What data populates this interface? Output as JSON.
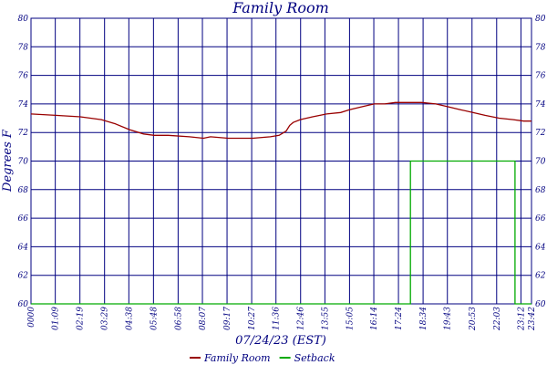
{
  "chart_data": {
    "type": "line",
    "title": "Family Room",
    "xlabel": "07/24/23 (EST)",
    "ylabel": "Degrees F",
    "ylim": [
      60,
      80
    ],
    "yticks": [
      60,
      62,
      64,
      66,
      68,
      70,
      72,
      74,
      76,
      78,
      80
    ],
    "xlim": [
      "00:00",
      "23:42"
    ],
    "xticks": [
      "0000",
      "01:09",
      "02:19",
      "03:29",
      "04:38",
      "05:48",
      "06:58",
      "08:07",
      "09:17",
      "10:27",
      "11:36",
      "12:46",
      "13:55",
      "15:05",
      "16:14",
      "17:24",
      "18:34",
      "19:43",
      "20:53",
      "22:03",
      "23:12",
      "23:42"
    ],
    "grid": true,
    "legend_position": "bottom",
    "series": [
      {
        "name": "Family Room",
        "color": "#990000",
        "x": [
          "00:00",
          "01:10",
          "02:20",
          "03:20",
          "04:00",
          "04:40",
          "05:20",
          "05:50",
          "06:30",
          "07:30",
          "08:10",
          "08:30",
          "09:20",
          "10:30",
          "11:20",
          "11:45",
          "12:05",
          "12:15",
          "12:25",
          "12:45",
          "13:20",
          "14:00",
          "14:40",
          "15:05",
          "15:40",
          "16:15",
          "16:45",
          "17:15",
          "17:45",
          "18:30",
          "19:10",
          "19:45",
          "20:20",
          "20:55",
          "21:30",
          "22:10",
          "22:50",
          "23:20",
          "23:42"
        ],
        "values": [
          73.3,
          73.2,
          73.1,
          72.9,
          72.6,
          72.2,
          71.9,
          71.8,
          71.8,
          71.7,
          71.6,
          71.7,
          71.6,
          71.6,
          71.7,
          71.8,
          72.1,
          72.5,
          72.7,
          72.9,
          73.1,
          73.3,
          73.4,
          73.6,
          73.8,
          74.0,
          74.0,
          74.1,
          74.1,
          74.1,
          74.0,
          73.8,
          73.6,
          73.4,
          73.2,
          73.0,
          72.9,
          72.8,
          72.8
        ]
      },
      {
        "name": "Setback",
        "color": "#00aa00",
        "x": [
          "00:00",
          "17:58",
          "17:58",
          "22:55",
          "22:55",
          "23:42"
        ],
        "values": [
          60,
          60,
          70,
          70,
          60,
          60
        ]
      }
    ]
  }
}
